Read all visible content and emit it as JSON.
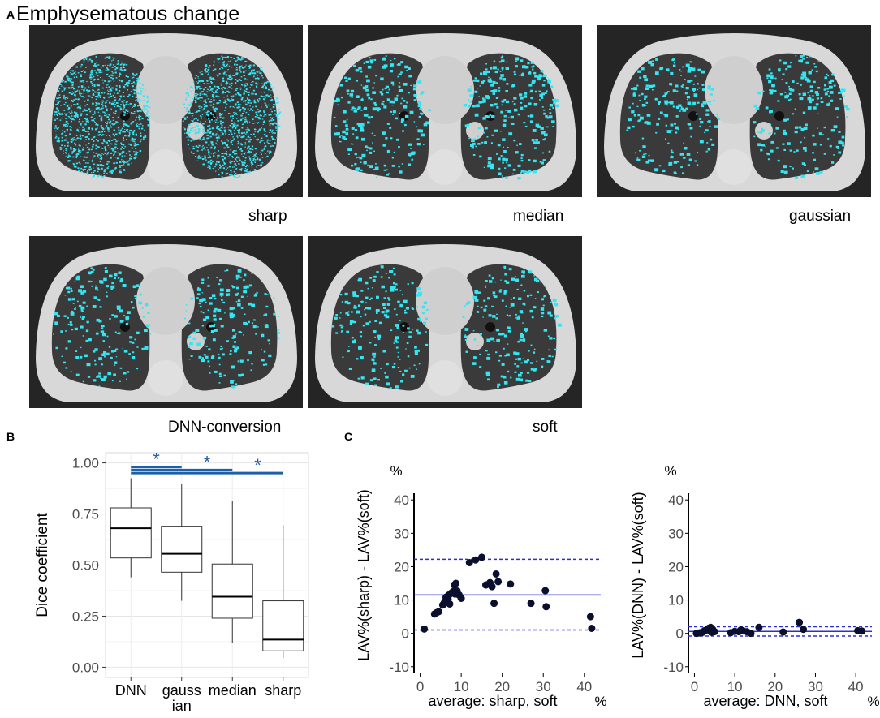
{
  "panel_a": {
    "letter": "A",
    "title": "Emphysematous change",
    "images": [
      {
        "label": "sharp",
        "density": 2300
      },
      {
        "label": "median",
        "density": 520
      },
      {
        "label": "gaussian",
        "density": 420
      },
      {
        "label": "DNN-conversion",
        "density": 380
      },
      {
        "label": "soft",
        "density": 400
      }
    ]
  },
  "panel_b": {
    "letter": "B"
  },
  "panel_c": {
    "letter": "C"
  },
  "colors": {
    "highlight": "#33e6f2",
    "sig": "#1f5fa8",
    "blue_line": "#2d2dd6",
    "point": "#0a0f2e"
  },
  "chart_data": [
    {
      "type": "boxplot",
      "ylabel": "Dice coefficient",
      "categories": [
        "DNN",
        "gauss\nian",
        "median",
        "sharp"
      ],
      "category_lines": [
        [
          "DNN"
        ],
        [
          "gauss",
          "ian"
        ],
        [
          "median"
        ],
        [
          "sharp"
        ]
      ],
      "ylim": [
        -0.05,
        1.05
      ],
      "yticks": [
        "0.00",
        "0.25",
        "0.50",
        "0.75",
        "1.00"
      ],
      "boxes": [
        {
          "min": 0.44,
          "q1": 0.535,
          "median": 0.68,
          "q3": 0.78,
          "max": 0.925
        },
        {
          "min": 0.325,
          "q1": 0.465,
          "median": 0.555,
          "q3": 0.69,
          "max": 0.895
        },
        {
          "min": 0.12,
          "q1": 0.24,
          "median": 0.345,
          "q3": 0.505,
          "max": 0.815
        },
        {
          "min": 0.045,
          "q1": 0.08,
          "median": 0.135,
          "q3": 0.325,
          "max": 0.695
        }
      ],
      "significance": [
        {
          "from": 0,
          "to": 1,
          "y": 0.98,
          "label": "*"
        },
        {
          "from": 0,
          "to": 2,
          "y": 0.965,
          "label": "*"
        },
        {
          "from": 0,
          "to": 3,
          "y": 0.95,
          "label": "*"
        }
      ]
    },
    {
      "type": "scatter",
      "subtype": "bland-altman",
      "ylabel": "LAV%(sharp) - LAV%(soft)",
      "xlabel": "average: sharp, soft",
      "x_unit": "%",
      "y_unit": "%",
      "xlim": [
        -1.5,
        44
      ],
      "ylim": [
        -12,
        42
      ],
      "xticks": [
        "0",
        "10",
        "20",
        "30",
        "40"
      ],
      "yticks": [
        "-10",
        "0",
        "10",
        "20",
        "30",
        "40"
      ],
      "mean_line": 11.5,
      "limits": [
        22.2,
        1.0
      ],
      "points": [
        [
          1,
          1.3
        ],
        [
          3.5,
          5.8
        ],
        [
          4,
          6.2
        ],
        [
          4.5,
          6.5
        ],
        [
          5.5,
          8.5
        ],
        [
          5.8,
          9
        ],
        [
          6,
          9.5
        ],
        [
          6.3,
          10.8
        ],
        [
          6.5,
          11
        ],
        [
          6.8,
          10.2
        ],
        [
          7,
          11.5
        ],
        [
          7.2,
          8.8
        ],
        [
          7.5,
          12
        ],
        [
          8,
          12.5
        ],
        [
          8.3,
          14.5
        ],
        [
          8.7,
          15
        ],
        [
          8.5,
          11.8
        ],
        [
          9,
          12.7
        ],
        [
          9.5,
          11.5
        ],
        [
          10,
          10.5
        ],
        [
          12,
          21.2
        ],
        [
          13.5,
          22
        ],
        [
          15,
          22.8
        ],
        [
          16,
          14.5
        ],
        [
          17,
          15.2
        ],
        [
          17.5,
          14
        ],
        [
          18,
          9
        ],
        [
          18.5,
          17.8
        ],
        [
          19,
          15.5
        ],
        [
          22,
          14.8
        ],
        [
          27,
          9
        ],
        [
          30.5,
          12.8
        ],
        [
          30.7,
          8
        ],
        [
          41.5,
          5
        ],
        [
          41.8,
          1.5
        ]
      ]
    },
    {
      "type": "scatter",
      "subtype": "bland-altman",
      "ylabel": "LAV%(DNN) - LAV%(soft)",
      "xlabel": "average: DNN, soft",
      "x_unit": "%",
      "y_unit": "%",
      "xlim": [
        -1.5,
        44
      ],
      "ylim": [
        -12,
        42
      ],
      "xticks": [
        "0",
        "10",
        "20",
        "30",
        "40"
      ],
      "yticks": [
        "-10",
        "0",
        "10",
        "20",
        "30",
        "40"
      ],
      "mean_line": 0.6,
      "limits": [
        2.0,
        -0.8
      ],
      "points": [
        [
          0.5,
          0
        ],
        [
          1,
          0.1
        ],
        [
          1.5,
          0.2
        ],
        [
          2,
          0.3
        ],
        [
          2.2,
          0.5
        ],
        [
          2.5,
          0.8
        ],
        [
          3,
          1.0
        ],
        [
          3.2,
          1.2
        ],
        [
          3.5,
          1.5
        ],
        [
          4,
          1.8
        ],
        [
          4.2,
          0.3
        ],
        [
          4.5,
          1.2
        ],
        [
          5,
          0.5
        ],
        [
          9,
          0.2
        ],
        [
          10,
          0.6
        ],
        [
          11,
          0.5
        ],
        [
          11.5,
          1.0
        ],
        [
          12,
          0.8
        ],
        [
          13,
          0.5
        ],
        [
          14,
          0
        ],
        [
          16,
          1.8
        ],
        [
          22,
          0.4
        ],
        [
          26,
          3.3
        ],
        [
          27,
          1.2
        ],
        [
          40.5,
          0.8
        ],
        [
          41.5,
          0.7
        ]
      ]
    }
  ]
}
